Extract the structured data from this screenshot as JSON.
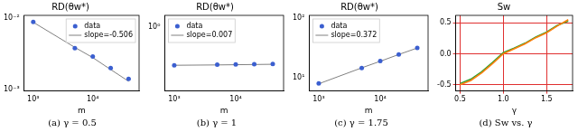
{
  "chart_data": [
    {
      "type": "scatter",
      "title": "RD(θw*)",
      "caption": "(a) γ = 0.5",
      "xlabel": "m",
      "log": true,
      "legend": "upper right",
      "x": [
        1000,
        5000,
        10000,
        20000,
        40000
      ],
      "xlim": [
        700,
        60000
      ],
      "xticks": [
        {
          "value": 1000,
          "label": "10³"
        },
        {
          "value": 10000,
          "label": "10⁴"
        }
      ],
      "ylim": [
        0.00095,
        0.011
      ],
      "yticks": [
        {
          "value": 0.001,
          "label": "10⁻³"
        },
        {
          "value": 0.01,
          "label": "10⁻²"
        }
      ],
      "series": [
        {
          "name": "data",
          "color": "#3b5fd0",
          "marker": "circle",
          "values": [
            0.0089,
            0.0038,
            0.0029,
            0.002,
            0.0014
          ]
        },
        {
          "name": "slope=-0.506",
          "color": "#808080",
          "line_style": "solid",
          "values": [
            0.0088,
            0.0039,
            0.0028,
            0.0019,
            0.0013
          ]
        }
      ]
    },
    {
      "type": "scatter",
      "title": "RD(θw*)",
      "caption": "(b) γ = 1",
      "xlabel": "m",
      "log": true,
      "legend": "upper left",
      "x": [
        1000,
        5000,
        10000,
        20000,
        40000
      ],
      "xlim": [
        700,
        60000
      ],
      "xticks": [
        {
          "value": 1000,
          "label": "10³"
        },
        {
          "value": 10000,
          "label": "10⁴"
        }
      ],
      "ylim": [
        0.1,
        1.5
      ],
      "yticks": [
        {
          "value": 1,
          "label": "10⁰"
        }
      ],
      "series": [
        {
          "name": "data",
          "color": "#3b5fd0",
          "marker": "circle",
          "values": [
            0.25,
            0.256,
            0.258,
            0.26,
            0.263
          ]
        },
        {
          "name": "slope=0.007",
          "color": "#808080",
          "line_style": "solid",
          "values": [
            0.251,
            0.254,
            0.256,
            0.258,
            0.26
          ]
        }
      ]
    },
    {
      "type": "scatter",
      "title": "RD(θw*)",
      "caption": "(c) γ = 1.75",
      "xlabel": "m",
      "log": true,
      "legend": "upper left",
      "x": [
        1000,
        5000,
        10000,
        20000,
        40000
      ],
      "xlim": [
        700,
        60000
      ],
      "xticks": [
        {
          "value": 1000,
          "label": "10³"
        },
        {
          "value": 10000,
          "label": "10⁴"
        }
      ],
      "ylim": [
        6,
        110
      ],
      "yticks": [
        {
          "value": 10,
          "label": "10¹"
        },
        {
          "value": 100,
          "label": "10²"
        }
      ],
      "series": [
        {
          "name": "data",
          "color": "#3b5fd0",
          "marker": "circle",
          "values": [
            8,
            14.5,
            19,
            24.5,
            31.5
          ]
        },
        {
          "name": "slope=0.372",
          "color": "#808080",
          "line_style": "solid",
          "values": [
            7.9,
            14.6,
            18.8,
            24.4,
            31.3
          ]
        }
      ]
    },
    {
      "type": "line",
      "title": "Sw",
      "caption": "(d) Sw vs. γ",
      "xlabel": "γ",
      "grid": true,
      "x": [
        0.5,
        0.625,
        0.75,
        0.875,
        1.0,
        1.125,
        1.25,
        1.375,
        1.5,
        1.625,
        1.75
      ],
      "xlim": [
        0.45,
        1.8
      ],
      "xticks": [
        0.5,
        {
          "value": 1.0,
          "label": "1.0"
        },
        1.5
      ],
      "ylim": [
        -0.6,
        0.62
      ],
      "yticks": [
        -0.5,
        {
          "value": 0,
          "label": "0.0"
        },
        0.5
      ],
      "series": [
        {
          "color": "#ff7f0e",
          "line_style": "solid",
          "values": [
            -0.5,
            -0.43,
            -0.31,
            -0.16,
            0.0,
            0.08,
            0.16,
            0.26,
            0.34,
            0.45,
            0.55
          ]
        },
        {
          "color": "#2ca02c",
          "line_style": "solid",
          "values": [
            -0.48,
            -0.41,
            -0.29,
            -0.14,
            0.02,
            0.09,
            0.17,
            0.27,
            0.35,
            0.46,
            0.53
          ]
        }
      ]
    }
  ]
}
